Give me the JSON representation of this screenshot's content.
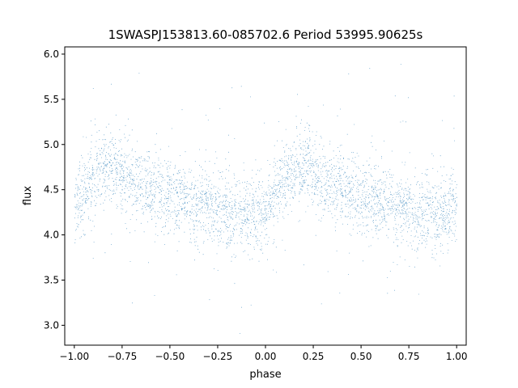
{
  "chart_data": {
    "type": "scatter",
    "title": "1SWASPJ153813.60-085702.6 Period 53995.90625s",
    "xlabel": "phase",
    "ylabel": "flux",
    "xlim": [
      -1.05,
      1.05
    ],
    "ylim": [
      2.78,
      6.08
    ],
    "xticks": [
      -1.0,
      -0.75,
      -0.5,
      -0.25,
      0.0,
      0.25,
      0.5,
      0.75,
      1.0
    ],
    "xtick_labels": [
      "−1.00",
      "−0.75",
      "−0.50",
      "−0.25",
      "0.00",
      "0.25",
      "0.50",
      "0.75",
      "1.00"
    ],
    "yticks": [
      3.0,
      3.5,
      4.0,
      4.5,
      5.0,
      5.5,
      6.0
    ],
    "ytick_labels": [
      "3.0",
      "3.5",
      "4.0",
      "4.5",
      "5.0",
      "5.5",
      "6.0"
    ],
    "grid": false,
    "marker_color": "#1f77b4",
    "series": [
      {
        "x": [
          -1.0,
          -0.95,
          -0.9,
          -0.85,
          -0.8,
          -0.75,
          -0.7,
          -0.65,
          -0.6,
          -0.55,
          -0.5,
          -0.45,
          -0.4,
          -0.35,
          -0.3,
          -0.25,
          -0.2,
          -0.15,
          -0.1,
          -0.05,
          0.0,
          0.05,
          0.1,
          0.15,
          0.2,
          0.25,
          0.3,
          0.35,
          0.4,
          0.45,
          0.5,
          0.55,
          0.6,
          0.65,
          0.7,
          0.75,
          0.8,
          0.85,
          0.9,
          0.95,
          1.0
        ],
        "y": [
          4.3,
          4.45,
          4.6,
          4.7,
          4.75,
          4.68,
          4.6,
          4.55,
          4.5,
          4.47,
          4.43,
          4.4,
          4.36,
          4.32,
          4.3,
          4.28,
          4.25,
          4.22,
          4.2,
          4.25,
          4.3,
          4.45,
          4.6,
          4.7,
          4.75,
          4.68,
          4.6,
          4.55,
          4.5,
          4.47,
          4.43,
          4.4,
          4.36,
          4.32,
          4.3,
          4.28,
          4.25,
          4.22,
          4.2,
          4.25,
          4.3
        ],
        "scatter_sd": 0.2,
        "point_count": 40000
      }
    ]
  }
}
